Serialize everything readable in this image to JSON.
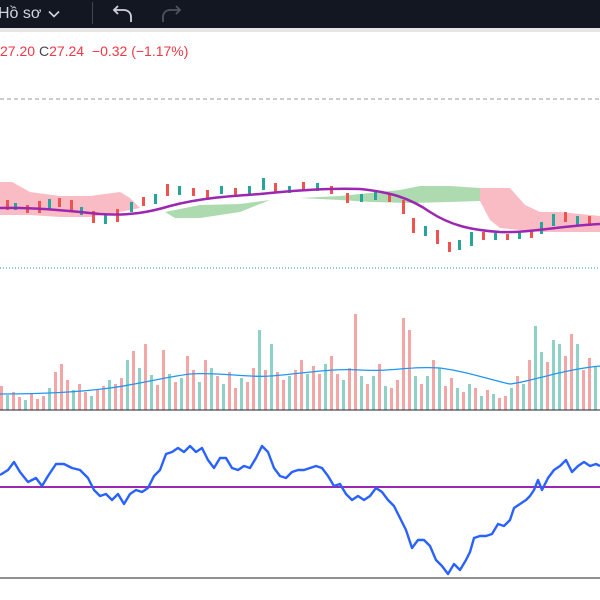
{
  "toolbar": {
    "profile_label": "Hồ sơ",
    "undo_icon": "undo-icon",
    "redo_icon": "redo-icon",
    "dropdown_icon": "chevron-down-icon"
  },
  "legend": {
    "open_value": "27.20",
    "close_label": "C",
    "close_value": "27.24",
    "change": "−0.32 (−1.17%)"
  },
  "colors": {
    "up": "#26a69a",
    "down": "#ef5350",
    "ma": "#9c27b0",
    "rsi": "#2962ff",
    "cloud_bull": "#a5d6a7",
    "cloud_bear": "#f8a5b0",
    "volume_ma": "#2196f3"
  }
}
